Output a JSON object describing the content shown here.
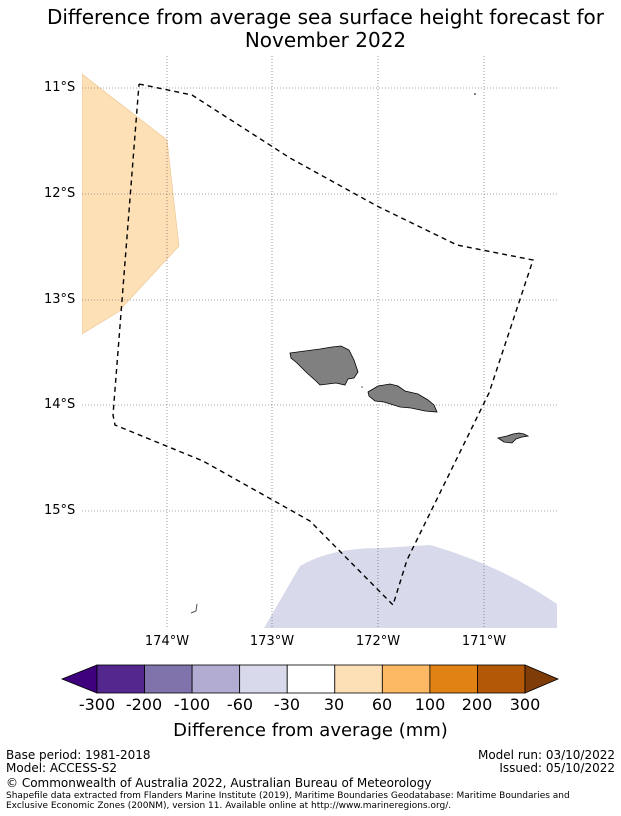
{
  "title": "Difference from average sea surface height forecast for\nNovember 2022",
  "map": {
    "lat_labels": [
      "11°S",
      "12°S",
      "13°S",
      "14°S",
      "15°S"
    ],
    "lon_labels": [
      "174°W",
      "173°W",
      "172°W",
      "171°W"
    ],
    "lat_values": [
      -11,
      -12,
      -13,
      -14,
      -15
    ],
    "lon_values": [
      -174,
      -173,
      -172,
      -171
    ],
    "extent": {
      "lon_min": -174.8,
      "lon_max": -170.45,
      "lat_min": -16.2,
      "lat_max": -10.7
    },
    "positive_anomaly_color": "#fee0b6",
    "negative_anomaly_color": "#d8daeb",
    "land_color": "#808080"
  },
  "colorbar": {
    "ticks": [
      "-300",
      "-200",
      "-100",
      "-60",
      "-30",
      "30",
      "60",
      "100",
      "200",
      "300"
    ],
    "colors": [
      "#3f007d",
      "#54278f",
      "#8073ac",
      "#b2abd2",
      "#d8daeb",
      "#ffffff",
      "#fee0b6",
      "#fdb863",
      "#e08214",
      "#b35806",
      "#7f3b08"
    ],
    "label": "Difference from average (mm)"
  },
  "footer": {
    "base_period": "Base period: 1981-2018",
    "model": "Model: ACCESS-S2",
    "model_run": "Model run: 03/10/2022",
    "issued": "Issued: 05/10/2022",
    "copyright": "© Commonwealth of Australia 2022, Australian Bureau of Meteorology",
    "source_line1": "Shapefile data extracted from Flanders Marine Institute (2019), Maritime Boundaries Geodatabase: Maritime Boundaries and",
    "source_line2": "Exclusive Economic Zones (200NM), version 11. Available online at http://www.marineregions.org/."
  }
}
